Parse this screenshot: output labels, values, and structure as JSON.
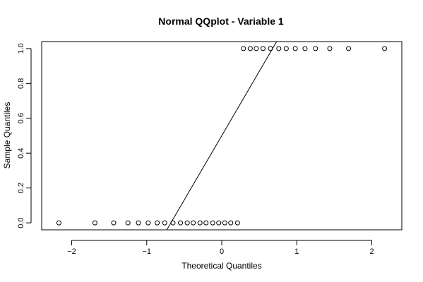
{
  "chart_data": {
    "type": "scatter",
    "title": "Normal QQplot - Variable 1",
    "xlabel": "Theoretical Quantiles",
    "ylabel": "Sample Quantiles",
    "xlim": [
      -2.4,
      2.4
    ],
    "ylim": [
      -0.04,
      1.04
    ],
    "xticks": [
      -2,
      -1,
      0,
      1,
      2
    ],
    "yticks": [
      0.0,
      0.2,
      0.4,
      0.6,
      0.8,
      1.0
    ],
    "xtick_labels": [
      "−2",
      "−1",
      "0",
      "1",
      "2"
    ],
    "ytick_labels": [
      "0.0",
      "0.2",
      "0.4",
      "0.6",
      "0.8",
      "1.0"
    ],
    "grid": false,
    "legend": "none",
    "points": {
      "x": [
        -2.17,
        -1.69,
        -1.44,
        -1.25,
        -1.11,
        -0.98,
        -0.86,
        -0.76,
        -0.65,
        -0.55,
        -0.46,
        -0.38,
        -0.29,
        -0.21,
        -0.12,
        -0.04,
        0.04,
        0.12,
        0.21,
        0.29,
        0.38,
        0.46,
        0.55,
        0.65,
        0.76,
        0.86,
        0.98,
        1.11,
        1.25,
        1.44,
        1.69,
        2.17
      ],
      "y": [
        0,
        0,
        0,
        0,
        0,
        0,
        0,
        0,
        0,
        0,
        0,
        0,
        0,
        0,
        0,
        0,
        0,
        0,
        0,
        1,
        1,
        1,
        1,
        1,
        1,
        1,
        1,
        1,
        1,
        1,
        1,
        1
      ]
    },
    "reference_line": {
      "x": [
        -0.732,
        0.732
      ],
      "y": [
        -0.04,
        1.04
      ]
    },
    "marker": "open-circle",
    "color": "#000000"
  }
}
